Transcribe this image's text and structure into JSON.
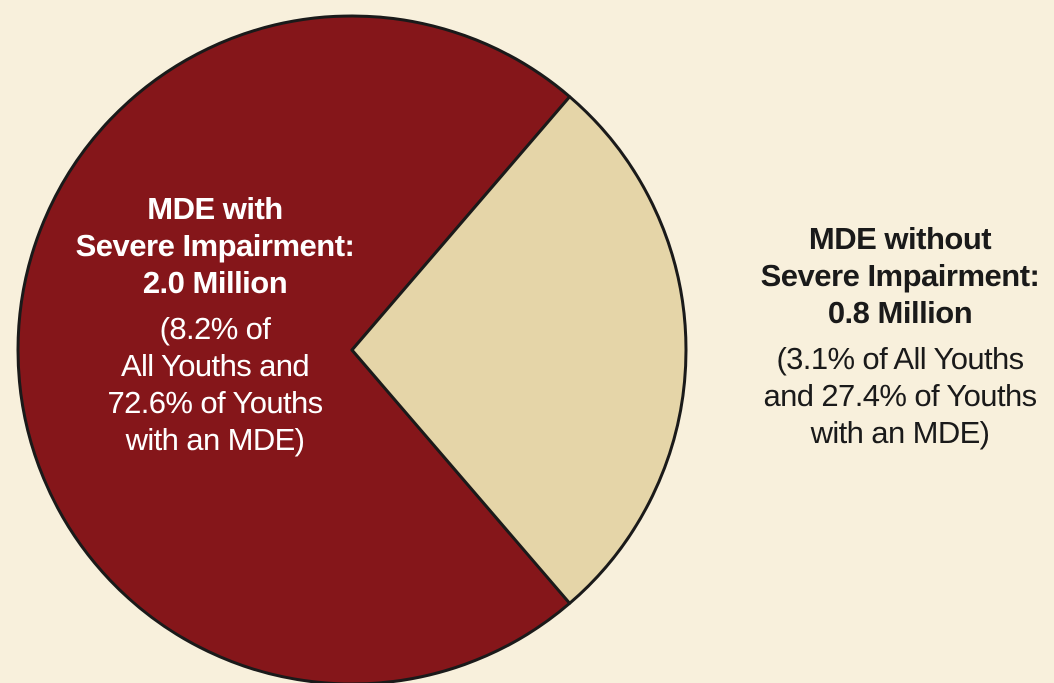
{
  "chart_data": {
    "type": "pie",
    "slices": [
      {
        "name_line1": "MDE with",
        "name_line2": "Severe Impairment:",
        "value_label": "2.0 Million",
        "value_millions": 2.0,
        "percent_of_youths_with_mde": 72.6,
        "sub_line1": "(8.2% of",
        "sub_line2": "All Youths and",
        "sub_line3": "72.6% of Youths",
        "sub_line4": "with an MDE)",
        "color": "#85161a"
      },
      {
        "name_line1": "MDE without",
        "name_line2": "Severe Impairment:",
        "value_label": "0.8 Million",
        "value_millions": 0.8,
        "percent_of_youths_with_mde": 27.4,
        "sub_line1": "(3.1% of All Youths",
        "sub_line2": "and 27.4% of Youths",
        "sub_line3": "with an MDE)",
        "color": "#e5d5a8"
      }
    ],
    "outline_color": "#1a1a1a",
    "background_color": "#f8f0dc"
  }
}
